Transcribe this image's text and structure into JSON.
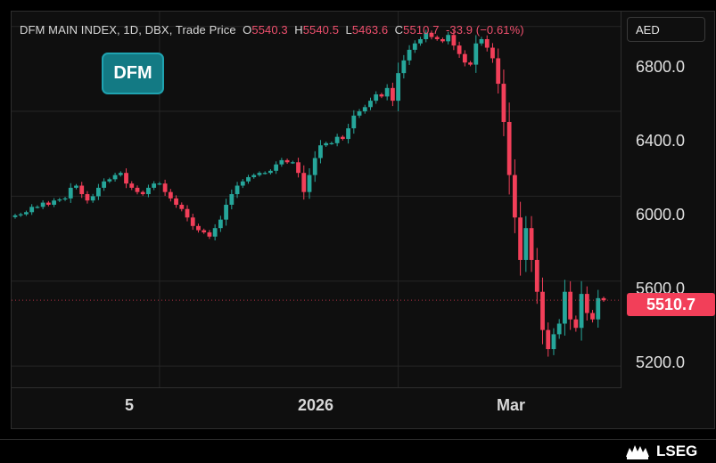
{
  "legend": {
    "title": "DFM MAIN INDEX, 1D, DBX, Trade Price",
    "open_label": "O",
    "open": "5540.3",
    "high_label": "H",
    "high": "5540.5",
    "low_label": "L",
    "low": "5463.6",
    "close_label": "C",
    "close": "5510.7",
    "change": "-33.9 (−0.61%)"
  },
  "logo_text": "DFM",
  "currency": "AED",
  "brand": "LSEG",
  "colors": {
    "up": "#26a69a",
    "down": "#f23f59",
    "grid": "#262626",
    "panel": "#0f0f0f"
  },
  "chart_data": {
    "type": "candlestick",
    "y_ticks": [
      "6800.0",
      "6400.0",
      "6000.0",
      "5600.0",
      "5200.0"
    ],
    "x_ticks": [
      "5",
      "2026",
      "Mar"
    ],
    "last_price": "5510.7",
    "ylim": [
      5100,
      6870
    ],
    "closes": [
      5910,
      5915,
      5925,
      5950,
      5950,
      5970,
      5960,
      5980,
      5985,
      5990,
      6040,
      6050,
      6010,
      5980,
      6000,
      6040,
      6070,
      6080,
      6100,
      6110,
      6060,
      6040,
      6020,
      6010,
      6040,
      6060,
      6060,
      6020,
      5990,
      5960,
      5940,
      5900,
      5860,
      5840,
      5830,
      5810,
      5850,
      5890,
      5960,
      6010,
      6050,
      6070,
      6090,
      6100,
      6110,
      6110,
      6120,
      6150,
      6170,
      6160,
      6160,
      6110,
      6020,
      6100,
      6180,
      6240,
      6250,
      6250,
      6280,
      6270,
      6320,
      6380,
      6400,
      6420,
      6450,
      6480,
      6470,
      6510,
      6450,
      6580,
      6640,
      6690,
      6720,
      6740,
      6770,
      6750,
      6740,
      6730,
      6760,
      6710,
      6670,
      6630,
      6620,
      6720,
      6740,
      6700,
      6650,
      6530,
      6350,
      6100,
      5900,
      5700,
      5850,
      5700,
      5550,
      5370,
      5280,
      5350,
      5400,
      5550,
      5420,
      5380,
      5540,
      5450,
      5420,
      5520,
      5510
    ]
  }
}
